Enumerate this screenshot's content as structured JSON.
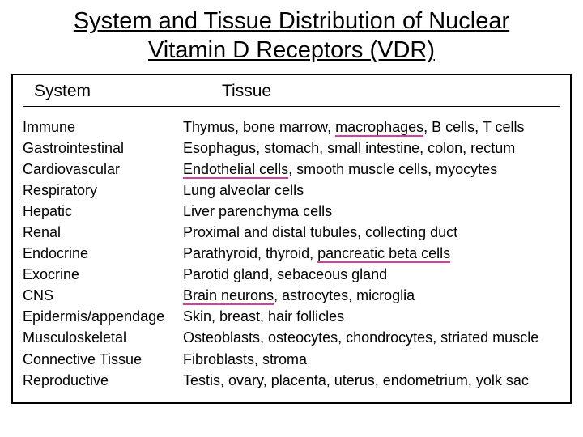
{
  "title_line1": "System and Tissue Distribution of Nuclear",
  "title_line2": "Vitamin D Receptors (VDR)",
  "header": {
    "system": "System",
    "tissue": "Tissue"
  },
  "highlight_color": "#d63ca1",
  "rows": [
    {
      "system": "Immune",
      "tissue_before": "Thymus, bone marrow, ",
      "tissue_hl": "macrophages",
      "tissue_after": ", B cells, T cells"
    },
    {
      "system": "Gastrointestinal",
      "tissue_before": "Esophagus, stomach, small intestine, colon, rectum",
      "tissue_hl": "",
      "tissue_after": ""
    },
    {
      "system": "Cardiovascular",
      "tissue_before": "",
      "tissue_hl": "Endothelial cells",
      "tissue_after": ", smooth muscle cells, myocytes"
    },
    {
      "system": "Respiratory",
      "tissue_before": "Lung alveolar cells",
      "tissue_hl": "",
      "tissue_after": ""
    },
    {
      "system": "Hepatic",
      "tissue_before": "Liver parenchyma cells",
      "tissue_hl": "",
      "tissue_after": ""
    },
    {
      "system": "Renal",
      "tissue_before": "Proximal and distal tubules, collecting duct",
      "tissue_hl": "",
      "tissue_after": ""
    },
    {
      "system": "Endocrine",
      "tissue_before": "Parathyroid, thyroid, ",
      "tissue_hl": "pancreatic beta cells",
      "tissue_after": ""
    },
    {
      "system": "Exocrine",
      "tissue_before": "Parotid gland, sebaceous gland",
      "tissue_hl": "",
      "tissue_after": ""
    },
    {
      "system": "CNS",
      "tissue_before": "",
      "tissue_hl": "Brain neurons",
      "tissue_after": ", astrocytes, microglia"
    },
    {
      "system": "Epidermis/appendage",
      "tissue_before": "Skin, breast, hair follicles",
      "tissue_hl": "",
      "tissue_after": ""
    },
    {
      "system": "Musculoskeletal",
      "tissue_before": "Osteoblasts, osteocytes, chondrocytes, striated muscle",
      "tissue_hl": "",
      "tissue_after": ""
    },
    {
      "system": "Connective Tissue",
      "tissue_before": "Fibroblasts, stroma",
      "tissue_hl": "",
      "tissue_after": ""
    },
    {
      "system": "Reproductive",
      "tissue_before": "Testis, ovary, placenta, uterus, endometrium, yolk sac",
      "tissue_hl": "",
      "tissue_after": ""
    }
  ]
}
